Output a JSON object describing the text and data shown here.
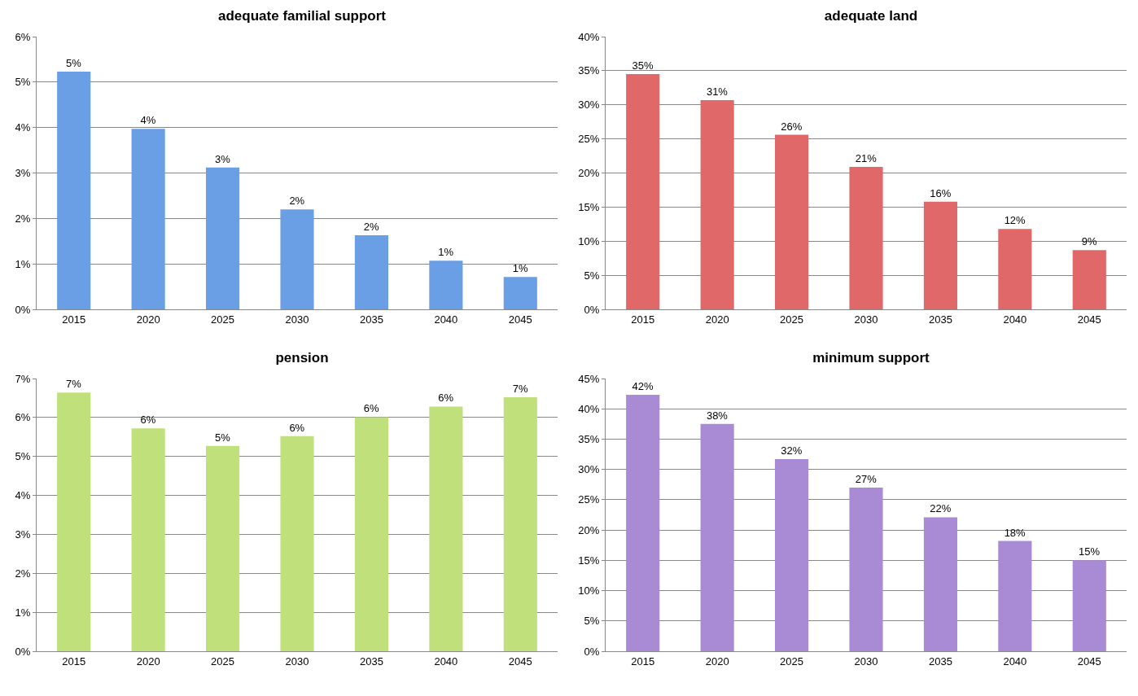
{
  "chart_data": [
    {
      "type": "bar",
      "title": "adequate familial support",
      "categories": [
        "2015",
        "2020",
        "2025",
        "2030",
        "2035",
        "2040",
        "2045"
      ],
      "values": [
        5.23,
        3.97,
        3.12,
        2.2,
        1.63,
        1.07,
        0.71
      ],
      "value_labels": [
        "5%",
        "4%",
        "3%",
        "2%",
        "2%",
        "1%",
        "1%"
      ],
      "color": "#6a9fe6",
      "ylim": [
        0,
        6
      ],
      "yticks": [
        {
          "value": 0,
          "label": "0%"
        },
        {
          "value": 1,
          "label": "1%"
        },
        {
          "value": 2,
          "label": "2%"
        },
        {
          "value": 3,
          "label": "3%"
        },
        {
          "value": 4,
          "label": "4%"
        },
        {
          "value": 5,
          "label": "5%"
        },
        {
          "value": 6,
          "label": "6%"
        }
      ],
      "grid": "y"
    },
    {
      "type": "bar",
      "title": "adequate land",
      "categories": [
        "2015",
        "2020",
        "2025",
        "2030",
        "2035",
        "2040",
        "2045"
      ],
      "values": [
        34.5,
        30.7,
        25.6,
        20.9,
        15.8,
        11.8,
        8.7
      ],
      "value_labels": [
        "35%",
        "31%",
        "26%",
        "21%",
        "16%",
        "12%",
        "9%"
      ],
      "color": "#e06868",
      "ylim": [
        0,
        40
      ],
      "yticks": [
        {
          "value": 0,
          "label": "0%"
        },
        {
          "value": 5,
          "label": "5%"
        },
        {
          "value": 10,
          "label": "10%"
        },
        {
          "value": 15,
          "label": "15%"
        },
        {
          "value": 20,
          "label": "20%"
        },
        {
          "value": 25,
          "label": "25%"
        },
        {
          "value": 30,
          "label": "30%"
        },
        {
          "value": 35,
          "label": "35%"
        },
        {
          "value": 40,
          "label": "40%"
        }
      ],
      "grid": "y"
    },
    {
      "type": "bar",
      "title": "pension",
      "categories": [
        "2015",
        "2020",
        "2025",
        "2030",
        "2035",
        "2040",
        "2045"
      ],
      "values": [
        6.64,
        5.72,
        5.27,
        5.52,
        6.01,
        6.28,
        6.52
      ],
      "value_labels": [
        "7%",
        "6%",
        "5%",
        "6%",
        "6%",
        "6%",
        "7%"
      ],
      "color": "#bfe07a",
      "ylim": [
        0,
        7
      ],
      "yticks": [
        {
          "value": 0,
          "label": "0%"
        },
        {
          "value": 1,
          "label": "1%"
        },
        {
          "value": 2,
          "label": "2%"
        },
        {
          "value": 3,
          "label": "3%"
        },
        {
          "value": 4,
          "label": "4%"
        },
        {
          "value": 5,
          "label": "5%"
        },
        {
          "value": 6,
          "label": "6%"
        },
        {
          "value": 7,
          "label": "7%"
        }
      ],
      "grid": "y"
    },
    {
      "type": "bar",
      "title": "minimum support",
      "categories": [
        "2015",
        "2020",
        "2025",
        "2030",
        "2035",
        "2040",
        "2045"
      ],
      "values": [
        42.3,
        37.5,
        31.7,
        27.0,
        22.1,
        18.2,
        15.0
      ],
      "value_labels": [
        "42%",
        "38%",
        "32%",
        "27%",
        "22%",
        "18%",
        "15%"
      ],
      "color": "#a88bd4",
      "ylim": [
        0,
        45
      ],
      "yticks": [
        {
          "value": 0,
          "label": "0%"
        },
        {
          "value": 5,
          "label": "5%"
        },
        {
          "value": 10,
          "label": "10%"
        },
        {
          "value": 15,
          "label": "15%"
        },
        {
          "value": 20,
          "label": "20%"
        },
        {
          "value": 25,
          "label": "25%"
        },
        {
          "value": 30,
          "label": "30%"
        },
        {
          "value": 35,
          "label": "35%"
        },
        {
          "value": 40,
          "label": "40%"
        },
        {
          "value": 45,
          "label": "45%"
        }
      ],
      "grid": "y"
    }
  ]
}
